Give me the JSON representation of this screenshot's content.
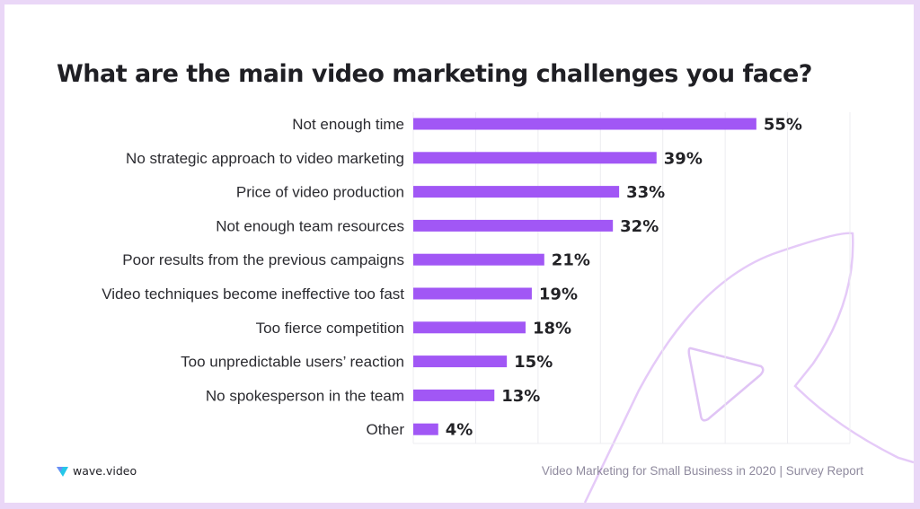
{
  "page": {
    "title": "What are the main video marketing challenges you face?",
    "brand": "wave.video",
    "footer": "Video Marketing for Small Business in 2020 | Survey Report"
  },
  "colors": {
    "bar": "#a157f5",
    "grid": "#ececf0",
    "decor_stroke": "#e5caf8",
    "page_border": "#ead7f7"
  },
  "chart_data": {
    "type": "bar",
    "orientation": "horizontal",
    "title": "What are the main video marketing challenges you face?",
    "categories": [
      "Not enough time",
      "No strategic approach to video marketing",
      "Price of video production",
      "Not enough team resources",
      "Poor results from the previous campaigns",
      "Video techniques become ineffective too fast",
      "Too fierce competition",
      "Too unpredictable users’ reaction",
      "No spokesperson in the team",
      "Other"
    ],
    "values": [
      55,
      39,
      33,
      32,
      21,
      19,
      18,
      15,
      13,
      4
    ],
    "value_labels": [
      "55%",
      "39%",
      "33%",
      "32%",
      "21%",
      "19%",
      "18%",
      "15%",
      "13%",
      "4%"
    ],
    "unit": "%",
    "xlim": [
      0,
      70
    ],
    "grid": true,
    "legend": "none"
  }
}
